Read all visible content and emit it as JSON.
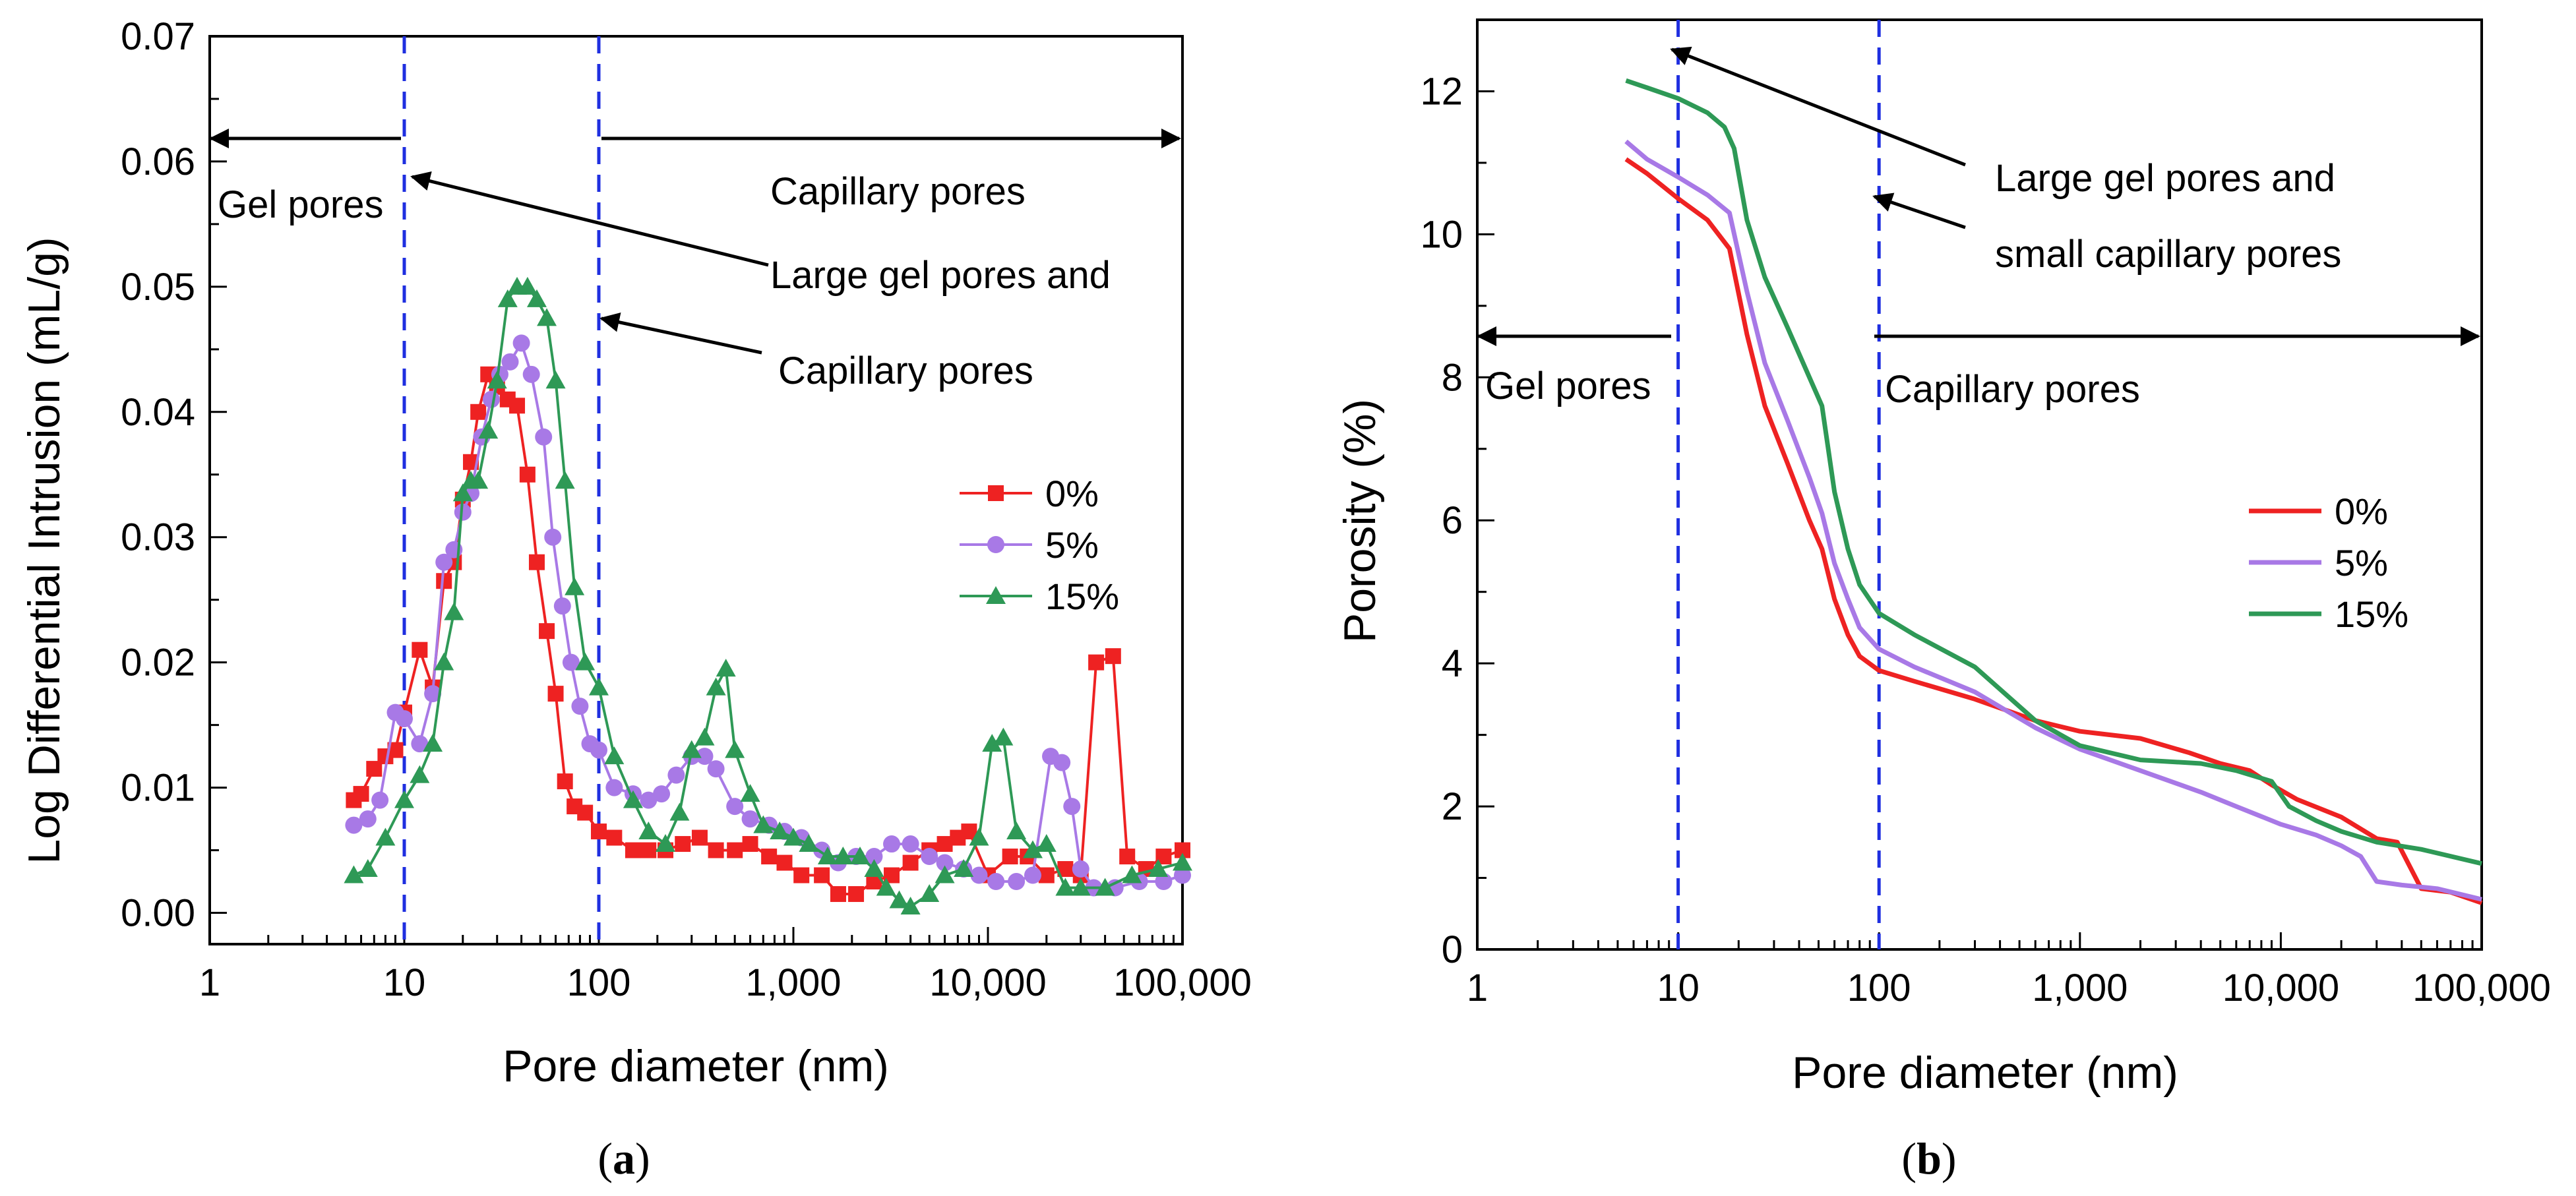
{
  "chart_data": [
    {
      "id": "a",
      "type": "line",
      "caption_letter": "a",
      "xlabel": "Pore diameter (nm)",
      "ylabel": "Log Differential Intrusion (mL/g)",
      "xscale": "log",
      "xlim": [
        1,
        100000
      ],
      "ylim": [
        -0.0025,
        0.07
      ],
      "x_tick_values": [
        1,
        10,
        100,
        1000,
        10000,
        100000
      ],
      "x_tick_labels": [
        "1",
        "10",
        "100",
        "1,000",
        "10,000",
        "100,000"
      ],
      "y_tick_values": [
        0,
        0.01,
        0.02,
        0.03,
        0.04,
        0.05,
        0.06,
        0.07
      ],
      "y_tick_labels": [
        "0.00",
        "0.01",
        "0.02",
        "0.03",
        "0.04",
        "0.05",
        "0.06",
        "0.07"
      ],
      "vlines": [
        10,
        100
      ],
      "legend_position": "middle-right",
      "annotations": {
        "gel": "Gel pores",
        "capillary_top": "Capillary pores",
        "large_gel": "Large gel pores and",
        "capillary_arrow": "Capillary pores"
      },
      "series": [
        {
          "name": "0%",
          "color": "#ee2222",
          "marker": "square",
          "x": [
            5.5,
            6,
            7,
            8,
            9,
            10,
            12,
            14,
            16,
            18,
            20,
            22,
            24,
            27,
            30,
            34,
            38,
            43,
            48,
            54,
            60,
            67,
            75,
            85,
            100,
            120,
            150,
            180,
            220,
            270,
            330,
            400,
            500,
            600,
            750,
            900,
            1100,
            1400,
            1700,
            2100,
            2600,
            3200,
            4000,
            5000,
            6000,
            7000,
            8000,
            10000,
            13000,
            16000,
            20000,
            25000,
            30000,
            36000,
            44000,
            52000,
            65000,
            80000,
            100000
          ],
          "y": [
            0.009,
            0.0095,
            0.0115,
            0.0125,
            0.013,
            0.016,
            0.021,
            0.018,
            0.0265,
            0.028,
            0.033,
            0.036,
            0.04,
            0.043,
            0.042,
            0.041,
            0.0405,
            0.035,
            0.028,
            0.0225,
            0.0175,
            0.0105,
            0.0085,
            0.008,
            0.0065,
            0.006,
            0.005,
            0.005,
            0.005,
            0.0055,
            0.006,
            0.005,
            0.005,
            0.0055,
            0.0045,
            0.004,
            0.003,
            0.003,
            0.0015,
            0.0015,
            0.0025,
            0.003,
            0.004,
            0.005,
            0.0055,
            0.006,
            0.0065,
            0.003,
            0.0045,
            0.0045,
            0.003,
            0.0035,
            0.003,
            0.02,
            0.0205,
            0.0045,
            0.0035,
            0.0045,
            0.005
          ]
        },
        {
          "name": "5%",
          "color": "#a879e6",
          "marker": "circle",
          "x": [
            5.5,
            6.5,
            7.5,
            9,
            10,
            12,
            14,
            16,
            18,
            20,
            22,
            25,
            28,
            31,
            35,
            40,
            45,
            52,
            58,
            65,
            72,
            80,
            90,
            100,
            120,
            150,
            180,
            210,
            250,
            300,
            350,
            400,
            500,
            600,
            750,
            900,
            1100,
            1400,
            1700,
            2100,
            2600,
            3200,
            4000,
            5000,
            6000,
            7500,
            9000,
            11000,
            14000,
            17000,
            21000,
            24000,
            27000,
            30000,
            35000,
            45000,
            60000,
            80000,
            100000
          ],
          "y": [
            0.007,
            0.0075,
            0.009,
            0.016,
            0.0155,
            0.0135,
            0.0175,
            0.028,
            0.029,
            0.032,
            0.0335,
            0.038,
            0.041,
            0.043,
            0.044,
            0.0455,
            0.043,
            0.038,
            0.03,
            0.0245,
            0.02,
            0.0165,
            0.0135,
            0.013,
            0.01,
            0.0095,
            0.009,
            0.0095,
            0.011,
            0.0125,
            0.0125,
            0.0115,
            0.0085,
            0.0075,
            0.007,
            0.0065,
            0.006,
            0.005,
            0.004,
            0.0045,
            0.0045,
            0.0055,
            0.0055,
            0.0045,
            0.004,
            0.0035,
            0.003,
            0.0025,
            0.0025,
            0.003,
            0.0125,
            0.012,
            0.0085,
            0.0035,
            0.002,
            0.002,
            0.0025,
            0.0025,
            0.003
          ]
        },
        {
          "name": "15%",
          "color": "#2e9956",
          "marker": "triangle",
          "x": [
            5.5,
            6.5,
            8,
            10,
            12,
            14,
            16,
            18,
            20,
            22,
            24,
            27,
            30,
            34,
            38,
            43,
            48,
            54,
            60,
            67,
            75,
            85,
            100,
            120,
            150,
            180,
            220,
            260,
            300,
            350,
            400,
            450,
            500,
            600,
            700,
            850,
            1000,
            1200,
            1500,
            1800,
            2200,
            2600,
            3000,
            3500,
            4000,
            5000,
            6000,
            7500,
            9000,
            10500,
            12000,
            14000,
            17000,
            20000,
            25000,
            30000,
            40000,
            55000,
            75000,
            100000
          ],
          "y": [
            0.003,
            0.0035,
            0.006,
            0.009,
            0.011,
            0.0135,
            0.02,
            0.024,
            0.0335,
            0.0345,
            0.0345,
            0.0385,
            0.0425,
            0.049,
            0.05,
            0.05,
            0.049,
            0.0475,
            0.0425,
            0.0345,
            0.026,
            0.02,
            0.018,
            0.0125,
            0.009,
            0.0065,
            0.0055,
            0.008,
            0.013,
            0.014,
            0.018,
            0.0195,
            0.013,
            0.0095,
            0.007,
            0.0065,
            0.006,
            0.0055,
            0.0045,
            0.0045,
            0.0045,
            0.0035,
            0.002,
            0.001,
            0.0005,
            0.0015,
            0.003,
            0.0035,
            0.006,
            0.0135,
            0.014,
            0.0065,
            0.005,
            0.0055,
            0.002,
            0.002,
            0.002,
            0.003,
            0.0035,
            0.004
          ]
        }
      ]
    },
    {
      "id": "b",
      "type": "line",
      "caption_letter": "b",
      "xlabel": "Pore diameter (nm)",
      "ylabel": "Porosity (%)",
      "xscale": "log",
      "xlim": [
        1,
        100000
      ],
      "ylim": [
        0,
        13
      ],
      "x_tick_values": [
        1,
        10,
        100,
        1000,
        10000,
        100000
      ],
      "x_tick_labels": [
        "1",
        "10",
        "100",
        "1,000",
        "10,000",
        "100,000"
      ],
      "y_tick_values": [
        0,
        2,
        4,
        6,
        8,
        10,
        12
      ],
      "y_tick_labels": [
        "0",
        "2",
        "4",
        "6",
        "8",
        "10",
        "12"
      ],
      "vlines": [
        10,
        100
      ],
      "legend_position": "middle-right",
      "annotations": {
        "gel": "Gel pores",
        "capillary": "Capillary pores",
        "large_gel_1": "Large gel pores and",
        "large_gel_2": "small capillary pores"
      },
      "series": [
        {
          "name": "0%",
          "color": "#ee2222",
          "x": [
            5.5,
            7,
            10,
            14,
            18,
            22,
            27,
            35,
            45,
            52,
            60,
            70,
            80,
            100,
            150,
            300,
            600,
            1000,
            2000,
            3500,
            5000,
            7000,
            9000,
            12000,
            20000,
            30000,
            38000,
            50000,
            70000,
            100000
          ],
          "y": [
            11.05,
            10.85,
            10.5,
            10.2,
            9.8,
            8.6,
            7.6,
            6.8,
            6.0,
            5.6,
            4.9,
            4.4,
            4.1,
            3.9,
            3.75,
            3.5,
            3.2,
            3.05,
            2.95,
            2.75,
            2.6,
            2.5,
            2.3,
            2.1,
            1.85,
            1.55,
            1.5,
            0.85,
            0.8,
            0.65
          ]
        },
        {
          "name": "5%",
          "color": "#a879e6",
          "x": [
            5.5,
            7,
            10,
            14,
            18,
            22,
            27,
            35,
            45,
            52,
            60,
            70,
            80,
            100,
            150,
            300,
            600,
            1000,
            2000,
            4000,
            6000,
            10000,
            15000,
            20000,
            25000,
            30000,
            40000,
            60000,
            100000
          ],
          "y": [
            11.3,
            11.05,
            10.8,
            10.55,
            10.3,
            9.2,
            8.2,
            7.4,
            6.6,
            6.1,
            5.4,
            4.9,
            4.5,
            4.2,
            3.95,
            3.6,
            3.1,
            2.8,
            2.5,
            2.2,
            2.0,
            1.75,
            1.6,
            1.45,
            1.3,
            0.95,
            0.9,
            0.85,
            0.7
          ]
        },
        {
          "name": "15%",
          "color": "#2e9956",
          "x": [
            5.5,
            7,
            10,
            14,
            17,
            19,
            22,
            27,
            35,
            45,
            52,
            60,
            70,
            80,
            100,
            150,
            300,
            600,
            1000,
            2000,
            4000,
            6000,
            9000,
            11000,
            15000,
            20000,
            30000,
            50000,
            100000
          ],
          "y": [
            12.15,
            12.05,
            11.9,
            11.7,
            11.5,
            11.2,
            10.2,
            9.4,
            8.7,
            8.0,
            7.6,
            6.4,
            5.6,
            5.1,
            4.7,
            4.4,
            3.95,
            3.2,
            2.85,
            2.65,
            2.6,
            2.5,
            2.35,
            2.0,
            1.8,
            1.65,
            1.5,
            1.4,
            1.2
          ]
        }
      ]
    }
  ]
}
